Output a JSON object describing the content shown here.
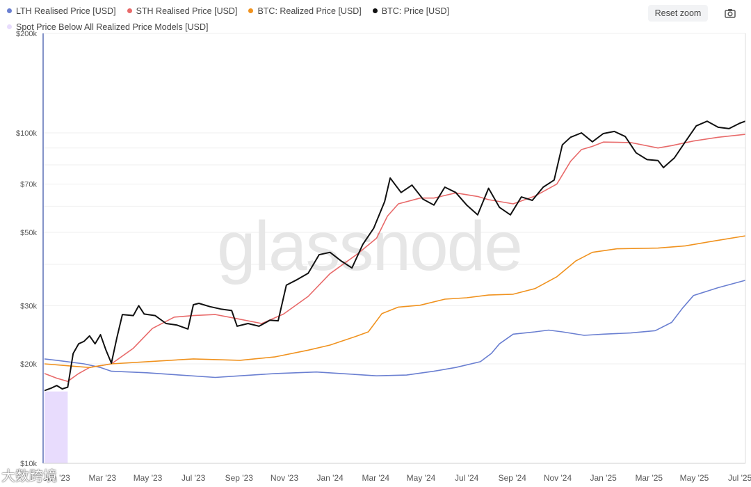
{
  "legend": {
    "items": [
      {
        "label": "LTH Realised Price [USD]",
        "color": "#6a7fd1"
      },
      {
        "label": "STH Realised Price [USD]",
        "color": "#e86a6a"
      },
      {
        "label": "BTC: Realized Price [USD]",
        "color": "#f0921e"
      },
      {
        "label": "BTC: Price [USD]",
        "color": "#111111"
      },
      {
        "label": "Spot Price Below All Realized Price Models [USD]",
        "color": "#e8dcfd"
      }
    ]
  },
  "toolbar": {
    "reset_zoom": "Reset zoom",
    "camera_icon": "camera-icon"
  },
  "watermark": "glassnode",
  "corner_watermark": "大数跨境",
  "chart_data": {
    "type": "line",
    "scale": "log",
    "ylim": [
      10000,
      200000
    ],
    "y_ticks": [
      {
        "v": 200000,
        "label": "$200k"
      },
      {
        "v": 100000,
        "label": "$100k"
      },
      {
        "v": 70000,
        "label": "$70k"
      },
      {
        "v": 50000,
        "label": "$50k"
      },
      {
        "v": 30000,
        "label": "$30k"
      },
      {
        "v": 20000,
        "label": "$20k"
      },
      {
        "v": 10000,
        "label": "$10k"
      }
    ],
    "x_range": [
      2022.95,
      2025.52
    ],
    "x_ticks": [
      {
        "v": 2023.0,
        "label": "Jan '23"
      },
      {
        "v": 2023.167,
        "label": "Mar '23"
      },
      {
        "v": 2023.333,
        "label": "May '23"
      },
      {
        "v": 2023.5,
        "label": "Jul '23"
      },
      {
        "v": 2023.667,
        "label": "Sep '23"
      },
      {
        "v": 2023.833,
        "label": "Nov '23"
      },
      {
        "v": 2024.0,
        "label": "Jan '24"
      },
      {
        "v": 2024.167,
        "label": "Mar '24"
      },
      {
        "v": 2024.333,
        "label": "May '24"
      },
      {
        "v": 2024.5,
        "label": "Jul '24"
      },
      {
        "v": 2024.667,
        "label": "Sep '24"
      },
      {
        "v": 2024.833,
        "label": "Nov '24"
      },
      {
        "v": 2025.0,
        "label": "Jan '25"
      },
      {
        "v": 2025.167,
        "label": "Mar '25"
      },
      {
        "v": 2025.333,
        "label": "May '25"
      },
      {
        "v": 2025.5,
        "label": "Jul '25"
      }
    ],
    "shaded_range": {
      "x0": 2022.955,
      "x1": 2023.04,
      "y": 16500
    },
    "series": [
      {
        "name": "LTH Realised Price [USD]",
        "color": "#6a7fd1",
        "points": [
          [
            2022.955,
            20700
          ],
          [
            2023.0,
            20500
          ],
          [
            2023.1,
            20000
          ],
          [
            2023.16,
            19500
          ],
          [
            2023.2,
            19000
          ],
          [
            2023.33,
            18800
          ],
          [
            2023.45,
            18500
          ],
          [
            2023.58,
            18200
          ],
          [
            2023.67,
            18400
          ],
          [
            2023.8,
            18700
          ],
          [
            2023.95,
            18900
          ],
          [
            2024.04,
            18700
          ],
          [
            2024.17,
            18400
          ],
          [
            2024.28,
            18500
          ],
          [
            2024.38,
            19000
          ],
          [
            2024.46,
            19500
          ],
          [
            2024.55,
            20300
          ],
          [
            2024.59,
            21500
          ],
          [
            2024.62,
            23000
          ],
          [
            2024.67,
            24600
          ],
          [
            2024.75,
            25000
          ],
          [
            2024.8,
            25300
          ],
          [
            2024.85,
            25000
          ],
          [
            2024.93,
            24400
          ],
          [
            2025.0,
            24600
          ],
          [
            2025.1,
            24800
          ],
          [
            2025.19,
            25200
          ],
          [
            2025.25,
            26700
          ],
          [
            2025.29,
            29500
          ],
          [
            2025.33,
            32200
          ],
          [
            2025.42,
            34000
          ],
          [
            2025.52,
            35800
          ]
        ]
      },
      {
        "name": "STH Realised Price [USD]",
        "color": "#e86a6a",
        "points": [
          [
            2022.955,
            18700
          ],
          [
            2023.0,
            18100
          ],
          [
            2023.04,
            17700
          ],
          [
            2023.08,
            18700
          ],
          [
            2023.12,
            19500
          ],
          [
            2023.2,
            20000
          ],
          [
            2023.28,
            22300
          ],
          [
            2023.35,
            25600
          ],
          [
            2023.43,
            27700
          ],
          [
            2023.5,
            28000
          ],
          [
            2023.58,
            28200
          ],
          [
            2023.65,
            27500
          ],
          [
            2023.75,
            26500
          ],
          [
            2023.83,
            28300
          ],
          [
            2023.92,
            32000
          ],
          [
            2024.0,
            37500
          ],
          [
            2024.1,
            43000
          ],
          [
            2024.17,
            48000
          ],
          [
            2024.21,
            56000
          ],
          [
            2024.25,
            61000
          ],
          [
            2024.33,
            63500
          ],
          [
            2024.38,
            63500
          ],
          [
            2024.46,
            65800
          ],
          [
            2024.54,
            64200
          ],
          [
            2024.58,
            62800
          ],
          [
            2024.67,
            61000
          ],
          [
            2024.75,
            64400
          ],
          [
            2024.83,
            70000
          ],
          [
            2024.88,
            82000
          ],
          [
            2024.92,
            89000
          ],
          [
            2024.96,
            91000
          ],
          [
            2025.0,
            93800
          ],
          [
            2025.1,
            93500
          ],
          [
            2025.2,
            90000
          ],
          [
            2025.25,
            91500
          ],
          [
            2025.33,
            94500
          ],
          [
            2025.42,
            97000
          ],
          [
            2025.52,
            99000
          ]
        ]
      },
      {
        "name": "BTC: Realized Price [USD]",
        "color": "#f0921e",
        "points": [
          [
            2022.955,
            20000
          ],
          [
            2023.05,
            19700
          ],
          [
            2023.12,
            19500
          ],
          [
            2023.2,
            20000
          ],
          [
            2023.33,
            20300
          ],
          [
            2023.5,
            20700
          ],
          [
            2023.67,
            20500
          ],
          [
            2023.8,
            21000
          ],
          [
            2023.92,
            22000
          ],
          [
            2024.0,
            22800
          ],
          [
            2024.1,
            24300
          ],
          [
            2024.14,
            25000
          ],
          [
            2024.19,
            28400
          ],
          [
            2024.25,
            29700
          ],
          [
            2024.33,
            30100
          ],
          [
            2024.42,
            31400
          ],
          [
            2024.5,
            31700
          ],
          [
            2024.58,
            32300
          ],
          [
            2024.67,
            32500
          ],
          [
            2024.75,
            33800
          ],
          [
            2024.83,
            36700
          ],
          [
            2024.9,
            41000
          ],
          [
            2024.96,
            43500
          ],
          [
            2025.05,
            44600
          ],
          [
            2025.2,
            44800
          ],
          [
            2025.3,
            45500
          ],
          [
            2025.42,
            47300
          ],
          [
            2025.52,
            48800
          ]
        ]
      },
      {
        "name": "BTC: Price [USD]",
        "color": "#111111",
        "points": [
          [
            2022.955,
            16600
          ],
          [
            2022.98,
            16900
          ],
          [
            2023.0,
            17200
          ],
          [
            2023.02,
            16800
          ],
          [
            2023.04,
            17000
          ],
          [
            2023.06,
            21500
          ],
          [
            2023.08,
            23000
          ],
          [
            2023.1,
            23400
          ],
          [
            2023.12,
            24300
          ],
          [
            2023.14,
            23000
          ],
          [
            2023.16,
            24500
          ],
          [
            2023.18,
            22000
          ],
          [
            2023.2,
            20100
          ],
          [
            2023.22,
            24000
          ],
          [
            2023.24,
            28200
          ],
          [
            2023.28,
            28000
          ],
          [
            2023.3,
            30000
          ],
          [
            2023.32,
            28300
          ],
          [
            2023.36,
            28000
          ],
          [
            2023.4,
            26500
          ],
          [
            2023.44,
            26200
          ],
          [
            2023.48,
            25500
          ],
          [
            2023.5,
            30200
          ],
          [
            2023.52,
            30500
          ],
          [
            2023.56,
            29800
          ],
          [
            2023.6,
            29300
          ],
          [
            2023.64,
            29000
          ],
          [
            2023.66,
            26000
          ],
          [
            2023.7,
            26500
          ],
          [
            2023.74,
            26000
          ],
          [
            2023.78,
            27100
          ],
          [
            2023.81,
            27000
          ],
          [
            2023.84,
            34600
          ],
          [
            2023.88,
            36000
          ],
          [
            2023.92,
            37600
          ],
          [
            2023.96,
            42800
          ],
          [
            2024.0,
            43500
          ],
          [
            2024.04,
            41000
          ],
          [
            2024.08,
            39000
          ],
          [
            2024.12,
            46000
          ],
          [
            2024.16,
            51500
          ],
          [
            2024.2,
            62000
          ],
          [
            2024.22,
            73000
          ],
          [
            2024.26,
            66000
          ],
          [
            2024.3,
            69500
          ],
          [
            2024.34,
            63000
          ],
          [
            2024.38,
            60500
          ],
          [
            2024.42,
            68500
          ],
          [
            2024.46,
            66000
          ],
          [
            2024.5,
            60500
          ],
          [
            2024.54,
            56500
          ],
          [
            2024.58,
            68000
          ],
          [
            2024.62,
            59500
          ],
          [
            2024.66,
            56500
          ],
          [
            2024.7,
            64000
          ],
          [
            2024.74,
            62500
          ],
          [
            2024.78,
            68500
          ],
          [
            2024.82,
            72000
          ],
          [
            2024.85,
            92000
          ],
          [
            2024.88,
            97000
          ],
          [
            2024.92,
            100000
          ],
          [
            2024.96,
            94000
          ],
          [
            2025.0,
            99500
          ],
          [
            2025.04,
            101000
          ],
          [
            2025.08,
            97500
          ],
          [
            2025.12,
            87000
          ],
          [
            2025.16,
            83000
          ],
          [
            2025.2,
            82500
          ],
          [
            2025.22,
            78500
          ],
          [
            2025.26,
            84000
          ],
          [
            2025.3,
            94000
          ],
          [
            2025.34,
            105000
          ],
          [
            2025.38,
            108500
          ],
          [
            2025.42,
            104000
          ],
          [
            2025.46,
            103000
          ],
          [
            2025.5,
            107000
          ],
          [
            2025.52,
            108500
          ]
        ]
      }
    ]
  }
}
